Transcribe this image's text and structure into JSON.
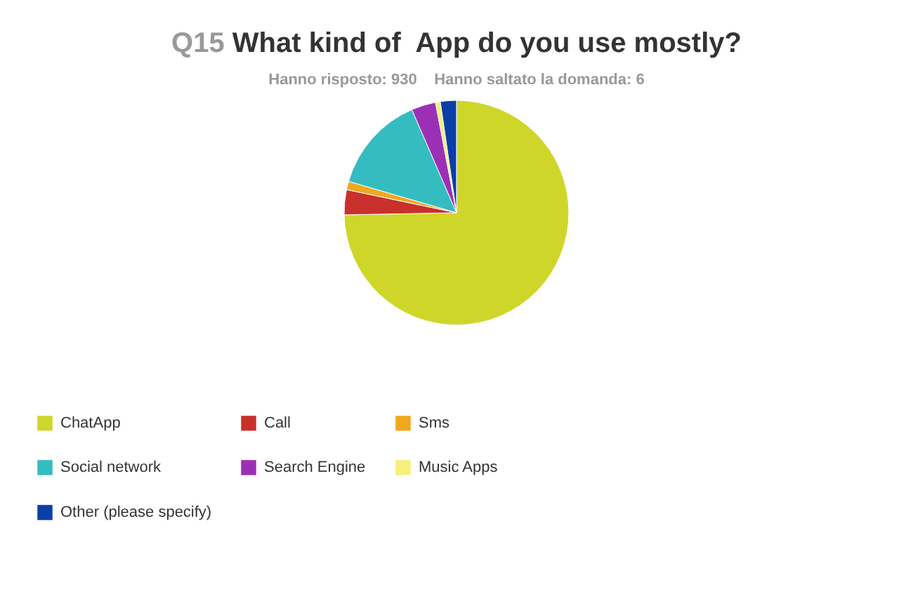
{
  "chart_data": {
    "type": "pie",
    "title": "Q15 What kind of  App do you use mostly?",
    "subtitle": "Hanno risposto: 930    Hanno saltato la domanda: 6",
    "categories": [
      "ChatApp",
      "Call",
      "Sms",
      "Social network",
      "Search Engine",
      "Music Apps",
      "Other (please specify)"
    ],
    "values": [
      74.7,
      3.6,
      1.2,
      14,
      3.5,
      0.7,
      2.3
    ],
    "colors": [
      "#cfd62a",
      "#c9302c",
      "#f0a81f",
      "#35bcc0",
      "#9b30b5",
      "#f5f07a",
      "#0b3fa6"
    ],
    "legend": "bottom"
  }
}
